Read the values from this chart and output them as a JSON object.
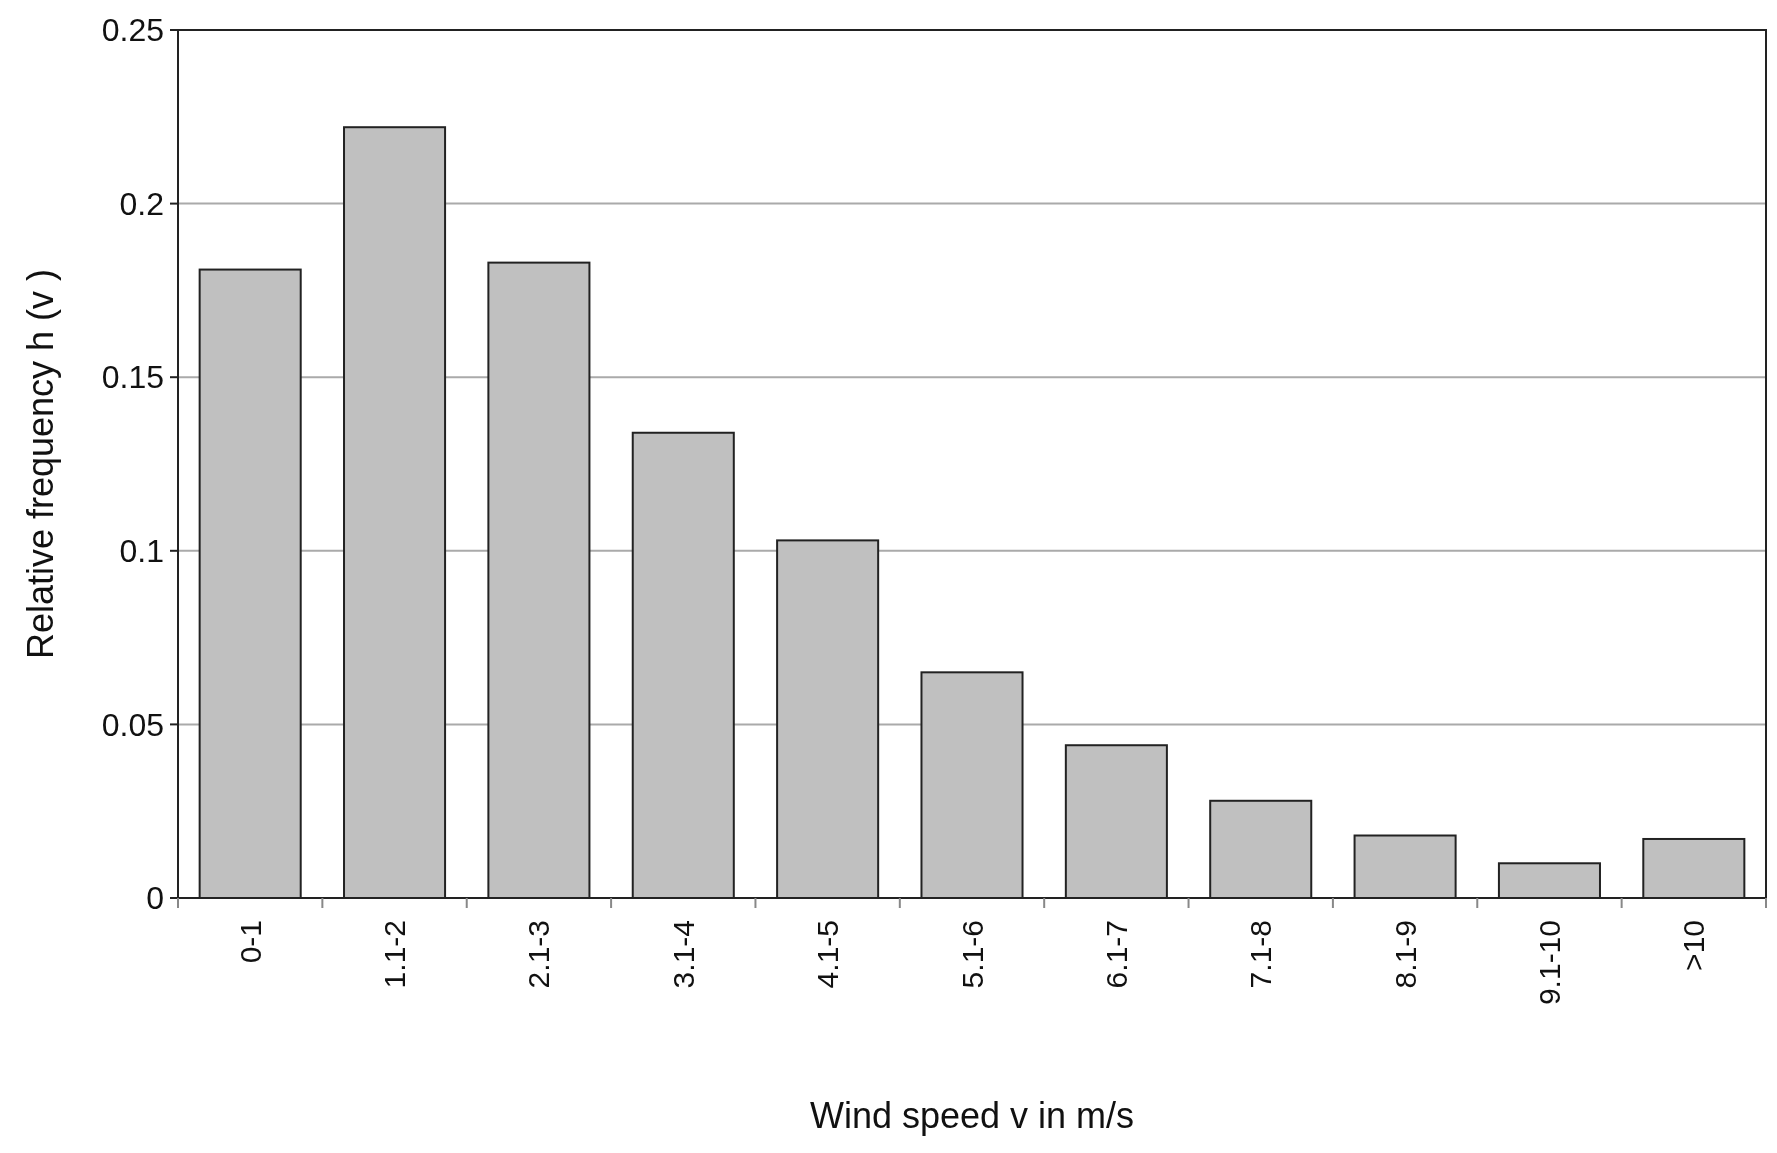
{
  "chart_data": {
    "type": "bar",
    "xlabel": "Wind speed v in m/s",
    "ylabel": "Relative frequency h (v )",
    "categories": [
      "0-1",
      "1.1-2",
      "2.1-3",
      "3.1-4",
      "4.1-5",
      "5.1-6",
      "6.1-7",
      "7.1-8",
      "8.1-9",
      "9.1-10",
      ">10"
    ],
    "values": [
      0.181,
      0.222,
      0.183,
      0.134,
      0.103,
      0.065,
      0.044,
      0.028,
      0.018,
      0.01,
      0.017
    ],
    "color": "#c0c0c0",
    "ylim": [
      0,
      0.25
    ],
    "yticks": [
      0,
      0.05,
      0.1,
      0.15,
      0.2,
      0.25
    ],
    "grid": "y"
  }
}
